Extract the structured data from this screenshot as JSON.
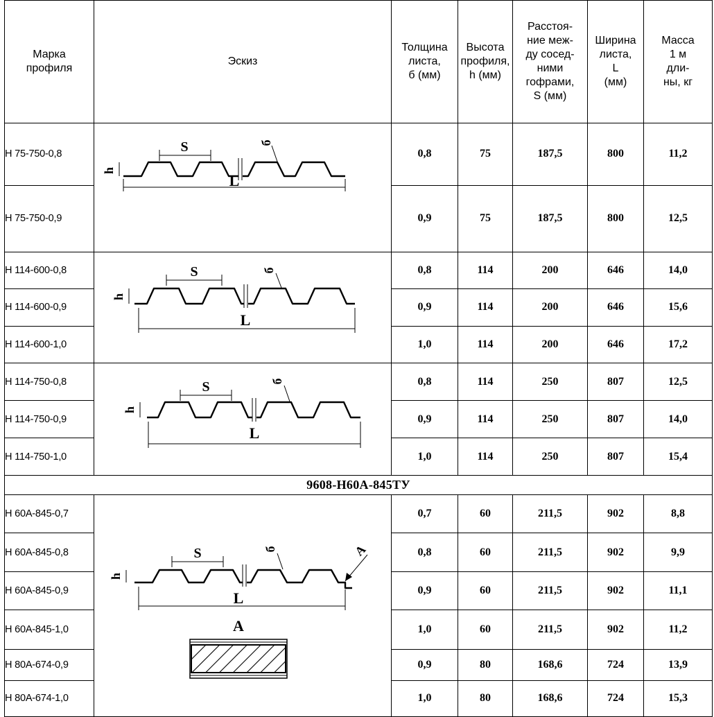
{
  "headers": {
    "mark": "Марка\nпрофиля",
    "sketch": "Эскиз",
    "thickness": "Толщина\nлиста,\nб (мм)",
    "height": "Высота\nпрофиля,\nh (мм)",
    "spacing": "Расстоя-\nние меж-\nду сосед-\nними\nгофрами,\nS (мм)",
    "width": "Ширина\nлиста,\nL\n(мм)",
    "mass": "Масса\n1 м\nдли-\nны, кг"
  },
  "sketch_labels": {
    "s": "S",
    "l": "L",
    "h": "h",
    "t": "б",
    "a": "A"
  },
  "series_title": "9608-Н60А-845ТУ",
  "rows": [
    {
      "mark": "Н 75-750-0,8",
      "t": "0,8",
      "h": "75",
      "s": "187,5",
      "l": "800",
      "m": "11,2"
    },
    {
      "mark": "Н 75-750-0,9",
      "t": "0,9",
      "h": "75",
      "s": "187,5",
      "l": "800",
      "m": "12,5"
    },
    {
      "mark": "Н 114-600-0,8",
      "t": "0,8",
      "h": "114",
      "s": "200",
      "l": "646",
      "m": "14,0"
    },
    {
      "mark": "Н 114-600-0,9",
      "t": "0,9",
      "h": "114",
      "s": "200",
      "l": "646",
      "m": "15,6"
    },
    {
      "mark": "Н 114-600-1,0",
      "t": "1,0",
      "h": "114",
      "s": "200",
      "l": "646",
      "m": "17,2"
    },
    {
      "mark": "Н 114-750-0,8",
      "t": "0,8",
      "h": "114",
      "s": "250",
      "l": "807",
      "m": "12,5"
    },
    {
      "mark": "Н 114-750-0,9",
      "t": "0,9",
      "h": "114",
      "s": "250",
      "l": "807",
      "m": "14,0"
    },
    {
      "mark": "Н 114-750-1,0",
      "t": "1,0",
      "h": "114",
      "s": "250",
      "l": "807",
      "m": "15,4"
    },
    {
      "mark": "Н 60А-845-0,7",
      "t": "0,7",
      "h": "60",
      "s": "211,5",
      "l": "902",
      "m": "8,8"
    },
    {
      "mark": "Н 60А-845-0,8",
      "t": "0,8",
      "h": "60",
      "s": "211,5",
      "l": "902",
      "m": "9,9"
    },
    {
      "mark": "Н 60А-845-0,9",
      "t": "0,9",
      "h": "60",
      "s": "211,5",
      "l": "902",
      "m": "11,1"
    },
    {
      "mark": "Н 60А-845-1,0",
      "t": "1,0",
      "h": "60",
      "s": "211,5",
      "l": "902",
      "m": "11,2"
    },
    {
      "mark": "Н 80А-674-0,9",
      "t": "0,9",
      "h": "80",
      "s": "168,6",
      "l": "724",
      "m": "13,9"
    },
    {
      "mark": "Н 80А-674-1,0",
      "t": "1,0",
      "h": "80",
      "s": "168,6",
      "l": "724",
      "m": "15,3"
    }
  ]
}
